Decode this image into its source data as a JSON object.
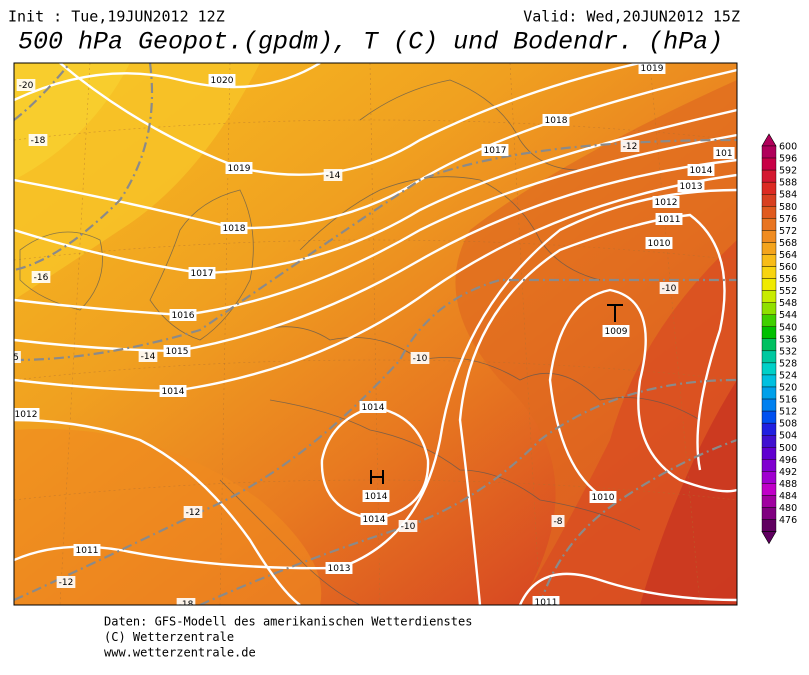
{
  "header": {
    "init": "Init : Tue,19JUN2012 12Z",
    "valid": "Valid: Wed,20JUN2012 15Z",
    "title": "500 hPa Geopot.(gpdm), T (C) und Bodendr. (hPa)"
  },
  "map": {
    "isobar_labels": [
      "1020",
      "1019",
      "1018",
      "1017",
      "1016",
      "1015",
      "1014",
      "1012",
      "1011",
      "1013",
      "1014",
      "1014",
      "1014",
      "1017",
      "1018",
      "1019",
      "101",
      "1014",
      "1013",
      "1012",
      "1011",
      "1010",
      "1009",
      "1010",
      "1011"
    ],
    "temperature_labels": [
      "-20",
      "-18",
      "-16",
      "-14",
      "-14",
      "-12",
      "-10",
      "-10",
      "-12",
      "-10",
      "-8",
      "-12",
      "-18",
      "5"
    ]
  },
  "colorbar": {
    "labels": [
      "600",
      "596",
      "592",
      "588",
      "584",
      "580",
      "576",
      "572",
      "568",
      "564",
      "560",
      "556",
      "552",
      "548",
      "544",
      "540",
      "536",
      "532",
      "528",
      "524",
      "520",
      "516",
      "512",
      "508",
      "504",
      "500",
      "496",
      "492",
      "488",
      "484",
      "480",
      "476"
    ],
    "colors": [
      "#b0005a",
      "#c80046",
      "#d41830",
      "#dc2a22",
      "#d84020",
      "#e05a1e",
      "#e87420",
      "#f08c20",
      "#f4a41c",
      "#f8bc18",
      "#f8d410",
      "#f0ea00",
      "#c8ec00",
      "#90e000",
      "#40d000",
      "#00c000",
      "#00c060",
      "#00c8a0",
      "#00d0c8",
      "#00c0e0",
      "#00a0ea",
      "#0080f0",
      "#0050f0",
      "#2020e0",
      "#4010d0",
      "#6000d0",
      "#8000d0",
      "#a000d0",
      "#c000c8",
      "#a000a0",
      "#800080",
      "#600060"
    ]
  },
  "footer": {
    "lines": [
      "Daten: GFS-Modell des amerikanischen Wetterdienstes",
      "(C) Wetterzentrale",
      "www.wetterzentrale.de"
    ]
  }
}
